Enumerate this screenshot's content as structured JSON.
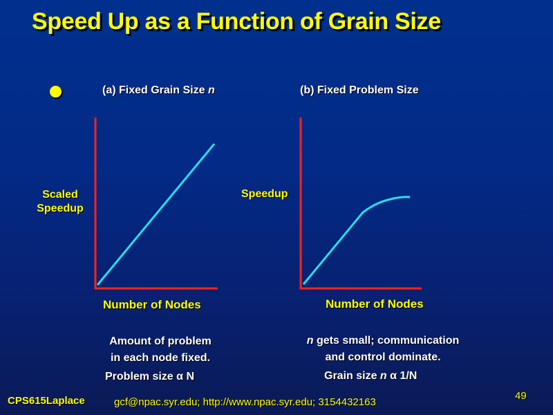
{
  "title": "Speed Up as a Function of Grain Size",
  "panel_a": {
    "heading_prefix": "(a) Fixed Grain Size ",
    "heading_var": "n",
    "ylabel_line1": "Scaled",
    "ylabel_line2": "Speedup",
    "xlabel": "Number of Nodes",
    "note_line1": "Amount of problem",
    "note_line2": "in each node fixed.",
    "formula_prefix": "Problem size ",
    "formula_symbol": "α",
    "formula_suffix": " N"
  },
  "panel_b": {
    "heading": "(b) Fixed Problem Size",
    "ylabel": "Speedup",
    "xlabel": "Number of Nodes",
    "note_line1_var": "n",
    "note_line1_rest": " gets small; communication",
    "note_line2": "and control dominate.",
    "formula_prefix": "Grain size ",
    "formula_var": "n",
    "formula_symbol": " α ",
    "formula_suffix": "1/N"
  },
  "footer": {
    "course": "CPS615Laplace",
    "contact": "gcf@npac.syr.edu; http://www.npac.syr.edu; 3154432163",
    "page_number": "49"
  },
  "colors": {
    "title": "#ffff00",
    "axis": "#ff2020",
    "curve": "#22e0f0",
    "label": "#ffff00",
    "text": "#ffffff"
  },
  "icons": [
    "bullet-dot-icon"
  ]
}
